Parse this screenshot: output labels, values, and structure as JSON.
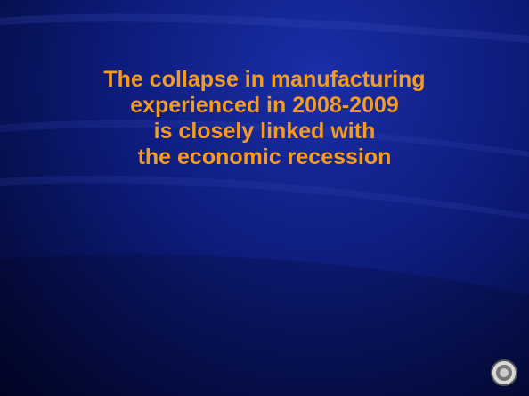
{
  "slide": {
    "lines": [
      "The collapse in manufacturing",
      "experienced in 2008-2009",
      "is closely linked with",
      "the economic recession"
    ]
  }
}
